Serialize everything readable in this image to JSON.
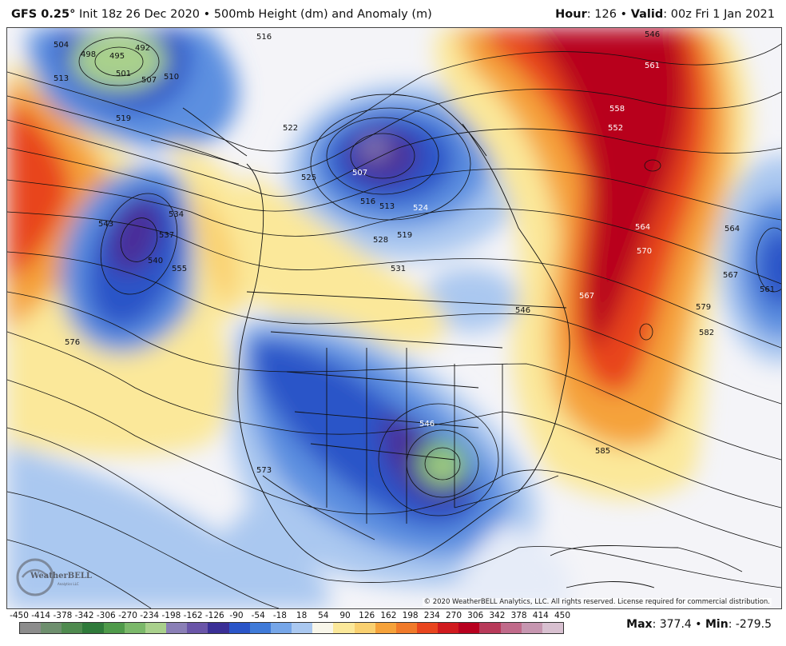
{
  "header": {
    "model": "GFS 0.25",
    "degree_symbol": "°",
    "init": "Init 18z 26 Dec 2020",
    "bullet": "•",
    "field": "500mb Height (dm) and Anomaly (m)",
    "hour_label": "Hour",
    "hour_value": ": 126",
    "valid_label": "Valid",
    "valid_value": ": 00z Fri 1 Jan 2021"
  },
  "map": {
    "contour_labels": [
      "504",
      "498",
      "492",
      "495",
      "501",
      "507",
      "510",
      "513",
      "516",
      "519",
      "522",
      "525",
      "507",
      "513",
      "516",
      "519",
      "524",
      "528",
      "531",
      "534",
      "537",
      "540",
      "543",
      "546",
      "555",
      "558",
      "561",
      "552",
      "564",
      "570",
      "567",
      "576",
      "579",
      "582",
      "585",
      "573",
      "546",
      "564",
      "567",
      "561",
      "546"
    ],
    "colors": {
      "deep_low": "#4a2f9a",
      "low": "#2a55c8",
      "mid_low": "#5b8fe0",
      "light_low": "#aac8f0",
      "neutral": "#f4f4f8",
      "light_high": "#fbe89a",
      "mid_high": "#f5a23a",
      "high": "#e8451e",
      "deep_high": "#b8001f"
    }
  },
  "credit": "© 2020 WeatherBELL Analytics, LLC. All rights reserved. License required for commercial distribution.",
  "logo": {
    "text": "WeatherBELL",
    "subtext": "Analytics LLC"
  },
  "legend": {
    "ticks": [
      "-450",
      "-414",
      "-378",
      "-342",
      "-306",
      "-270",
      "-234",
      "-198",
      "-162",
      "-126",
      "-90",
      "-54",
      "-18",
      "18",
      "54",
      "90",
      "126",
      "162",
      "198",
      "234",
      "270",
      "306",
      "342",
      "378",
      "414",
      "450"
    ],
    "colors": [
      "#8c8c8c",
      "#6e8f6e",
      "#4f8a4f",
      "#2f7a3a",
      "#4f9a4a",
      "#7bb86a",
      "#a9d08c",
      "#8a7fb6",
      "#6a55a8",
      "#3a2f96",
      "#2a55c8",
      "#3f7ad8",
      "#76a6e8",
      "#aac8f0",
      "#f8f6ea",
      "#fbe89a",
      "#f9d070",
      "#f5a23a",
      "#f07a2a",
      "#e8451e",
      "#d01a1e",
      "#b8001f",
      "#b83a5a",
      "#c06a8a",
      "#c696b0",
      "#d8c0d0"
    ]
  },
  "stats": {
    "max_label": "Max",
    "max_value": ": 377.4",
    "separator": "•",
    "min_label": "Min",
    "min_value": ": -279.5"
  }
}
